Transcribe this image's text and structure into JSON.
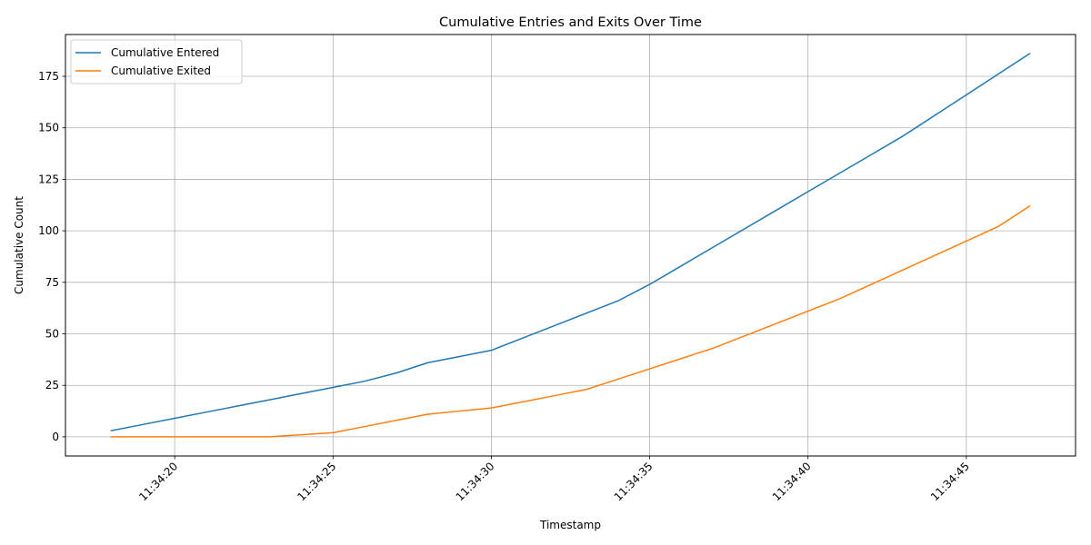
{
  "chart_data": {
    "type": "line",
    "title": "Cumulative Entries and Exits Over Time",
    "xlabel": "Timestamp",
    "ylabel": "Cumulative Count",
    "x": [
      "11:34:18",
      "11:34:19",
      "11:34:20",
      "11:34:21",
      "11:34:22",
      "11:34:23",
      "11:34:24",
      "11:34:25",
      "11:34:26",
      "11:34:27",
      "11:34:28",
      "11:34:29",
      "11:34:30",
      "11:34:31",
      "11:34:32",
      "11:34:33",
      "11:34:34",
      "11:34:35",
      "11:34:36",
      "11:34:37",
      "11:34:38",
      "11:34:39",
      "11:34:40",
      "11:34:41",
      "11:34:42",
      "11:34:43",
      "11:34:44",
      "11:34:45",
      "11:34:46",
      "11:34:47"
    ],
    "series": [
      {
        "name": "Cumulative Entered",
        "color": "#1f77b4",
        "values": [
          3,
          6,
          9,
          12,
          15,
          18,
          21,
          24,
          27,
          31,
          36,
          39,
          42,
          48,
          54,
          60,
          66,
          74,
          83,
          92,
          101,
          110,
          119,
          128,
          137,
          146,
          156,
          166,
          176,
          186
        ]
      },
      {
        "name": "Cumulative Exited",
        "color": "#ff7f0e",
        "values": [
          0,
          0,
          0,
          0,
          0,
          0,
          1,
          2,
          5,
          8,
          11,
          12.5,
          14,
          17,
          20,
          23,
          28,
          33,
          38,
          43,
          49,
          55,
          61,
          67,
          74,
          81,
          88,
          95,
          102,
          112
        ]
      }
    ],
    "x_ticks": [
      "11:34:20",
      "11:34:25",
      "11:34:30",
      "11:34:35",
      "11:34:40",
      "11:34:45"
    ],
    "y_ticks": [
      0,
      25,
      50,
      75,
      100,
      125,
      150,
      175
    ],
    "ylim": [
      -9.3,
      195.3
    ],
    "xlim": [
      "11:34:16.55",
      "11:34:48.45"
    ],
    "grid": true,
    "legend_position": "top-left",
    "x_tick_rotation": 45
  }
}
